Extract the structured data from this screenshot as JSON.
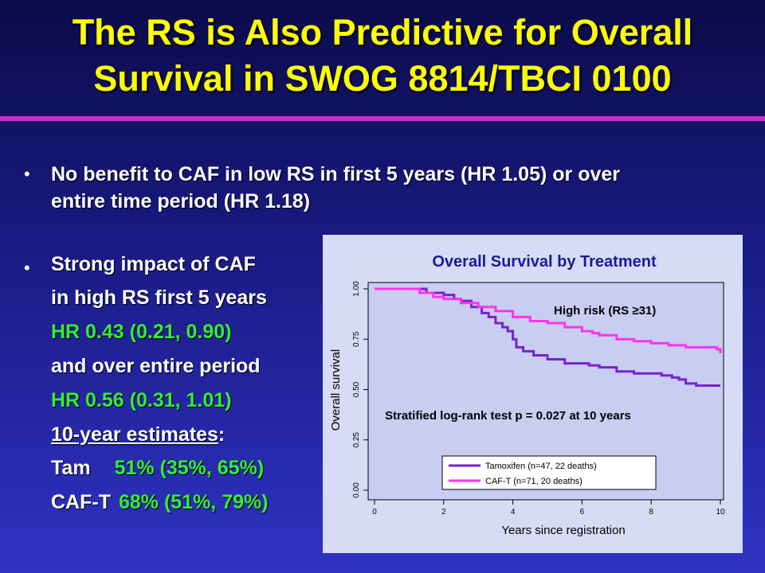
{
  "slide": {
    "title_line1": "The RS is Also Predictive for Overall",
    "title_line2": "Survival in SWOG 8814/TBCI 0100",
    "bullet_symbol": "•",
    "bullet1": {
      "line1": "No benefit to CAF in low RS in first 5 years (HR 1.05) or over",
      "line2": "entire time period (HR 1.18)"
    },
    "bullet2": {
      "line1": "Strong impact of CAF",
      "line2": "in high RS first 5 years",
      "line3": "HR 0.43 (0.21, 0.90)",
      "line4": "and over entire period",
      "line5": "HR 0.56 (0.31, 1.01)",
      "line6": "10-year estimates",
      "line6_suffix": ":",
      "tam_label": "Tam",
      "tam_value": "51% (35%, 65%)",
      "caf_label": "CAF-T",
      "caf_value": "68% (51%, 79%)"
    }
  },
  "colors": {
    "title": "#ffff00",
    "rule": "#d02cc8",
    "highlight_green": "#33ee33",
    "chart_title": "#1a1a9a",
    "tamoxifen": "#7a22c8",
    "caf_t": "#ff33ee",
    "plot_bg": "#c8cdf2"
  },
  "chart_data": {
    "type": "line",
    "title": "Overall Survival by Treatment",
    "xlabel": "Years since registration",
    "ylabel": "Overall survival",
    "xlim": [
      0,
      10
    ],
    "ylim": [
      0,
      1
    ],
    "x_ticks": [
      "0",
      "2",
      "4",
      "6",
      "8",
      "10"
    ],
    "y_ticks": [
      "0.00",
      "0.25",
      "0.50",
      "0.75",
      "1.00"
    ],
    "annotation_risk": "High risk (RS ≥31)",
    "annotation_test": "Stratified log-rank test p = 0.027 at 10 years",
    "legend_position": "bottom-center",
    "series": [
      {
        "name": "Tamoxifen",
        "legend": "Tamoxifen  (n=47, 22 deaths)",
        "points": [
          [
            0,
            1.0
          ],
          [
            1.3,
            1.0
          ],
          [
            1.5,
            0.98
          ],
          [
            2.0,
            0.97
          ],
          [
            2.3,
            0.95
          ],
          [
            2.5,
            0.94
          ],
          [
            2.8,
            0.91
          ],
          [
            3.1,
            0.88
          ],
          [
            3.3,
            0.86
          ],
          [
            3.5,
            0.83
          ],
          [
            3.7,
            0.81
          ],
          [
            3.85,
            0.79
          ],
          [
            4.0,
            0.75
          ],
          [
            4.1,
            0.71
          ],
          [
            4.3,
            0.69
          ],
          [
            4.6,
            0.67
          ],
          [
            5.0,
            0.65
          ],
          [
            5.5,
            0.63
          ],
          [
            6.2,
            0.62
          ],
          [
            6.5,
            0.61
          ],
          [
            7.0,
            0.59
          ],
          [
            7.5,
            0.58
          ],
          [
            8.3,
            0.57
          ],
          [
            8.6,
            0.56
          ],
          [
            8.8,
            0.55
          ],
          [
            9.0,
            0.53
          ],
          [
            9.3,
            0.52
          ],
          [
            10.0,
            0.52
          ]
        ]
      },
      {
        "name": "CAF-T",
        "legend": "CAF-T        (n=71, 20 deaths)",
        "points": [
          [
            0,
            1.0
          ],
          [
            1.0,
            1.0
          ],
          [
            1.3,
            0.98
          ],
          [
            1.7,
            0.96
          ],
          [
            2.0,
            0.95
          ],
          [
            2.5,
            0.93
          ],
          [
            3.0,
            0.91
          ],
          [
            3.5,
            0.89
          ],
          [
            4.0,
            0.86
          ],
          [
            4.5,
            0.84
          ],
          [
            5.0,
            0.83
          ],
          [
            5.5,
            0.81
          ],
          [
            6.0,
            0.79
          ],
          [
            6.3,
            0.78
          ],
          [
            6.5,
            0.77
          ],
          [
            7.0,
            0.75
          ],
          [
            7.5,
            0.74
          ],
          [
            8.0,
            0.73
          ],
          [
            8.5,
            0.72
          ],
          [
            9.0,
            0.71
          ],
          [
            9.5,
            0.71
          ],
          [
            9.9,
            0.7
          ],
          [
            10.0,
            0.68
          ]
        ]
      }
    ]
  }
}
